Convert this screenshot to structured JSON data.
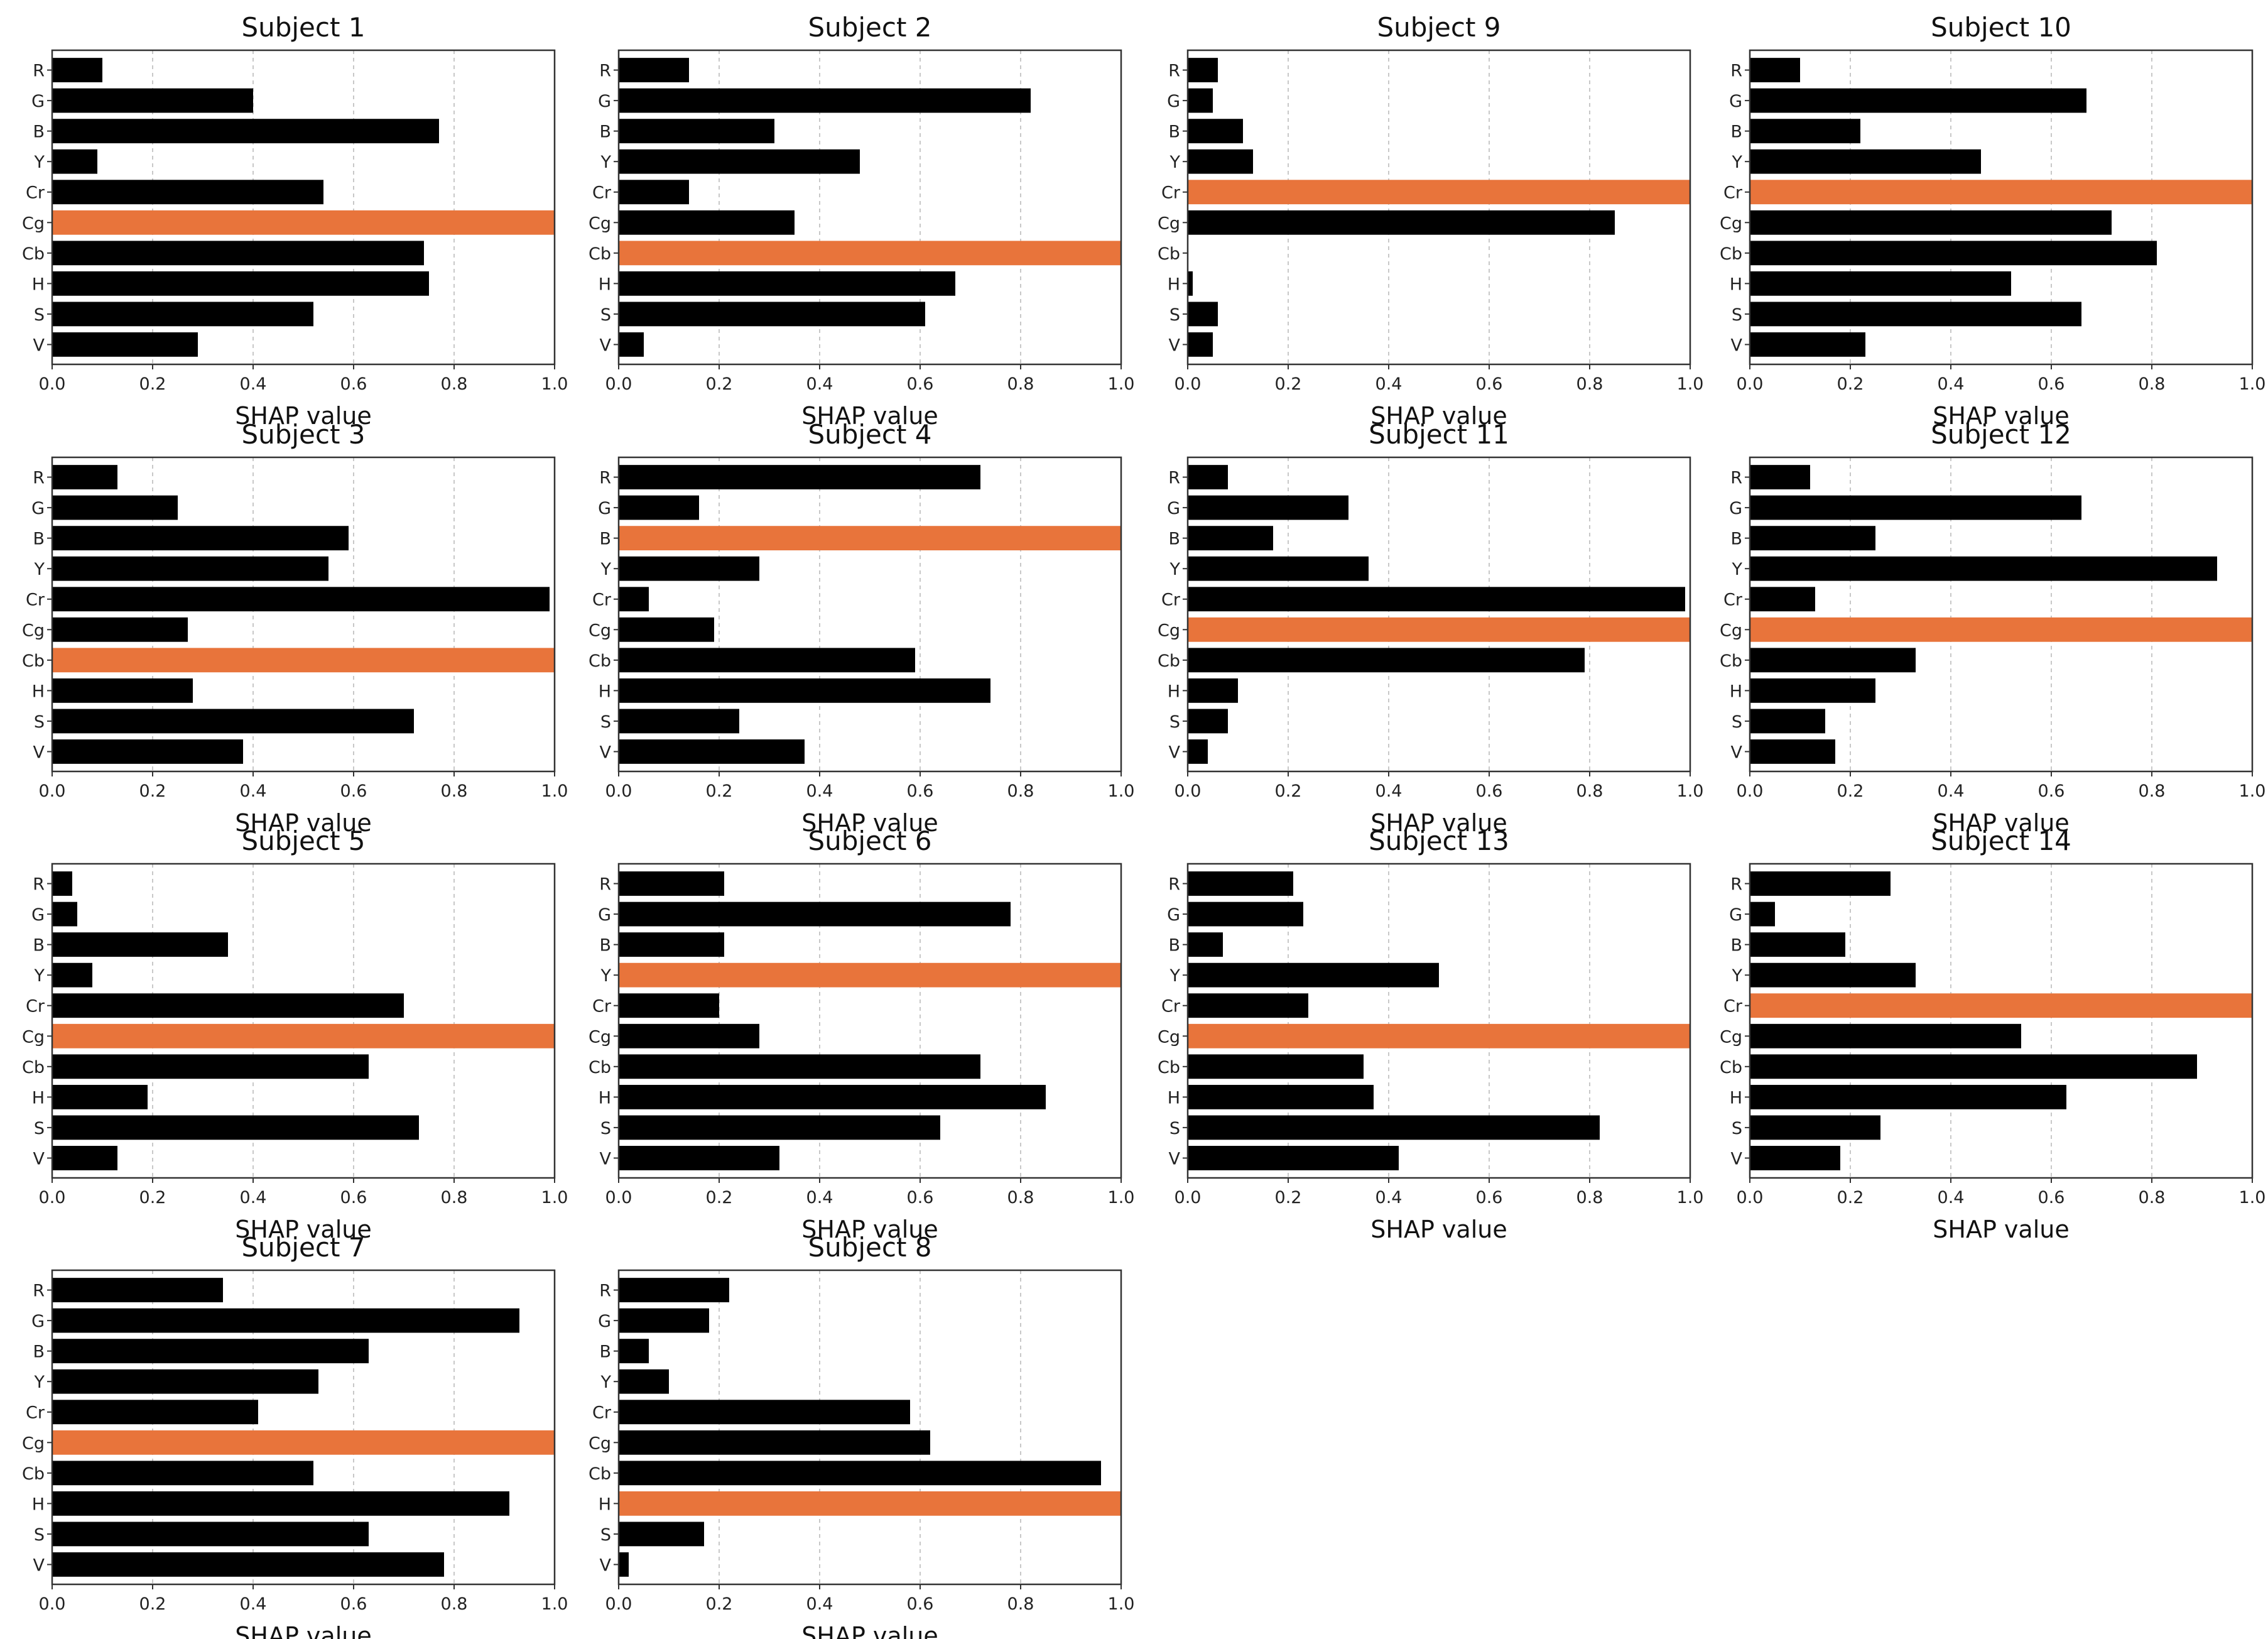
{
  "figure": {
    "bar_color": "#000000",
    "highlight_color": "#E8743B",
    "axis_color": "#333333",
    "grid": true,
    "grid_style": "dashed vertical"
  },
  "chart_data": [
    {
      "type": "bar",
      "orientation": "horizontal",
      "title": "Subject 1",
      "xlabel": "SHAP value",
      "xlim": [
        0,
        1
      ],
      "xticks": [
        "0.0",
        "0.2",
        "0.4",
        "0.6",
        "0.8",
        "1.0"
      ],
      "categories": [
        "R",
        "G",
        "B",
        "Y",
        "Cr",
        "Cg",
        "Cb",
        "H",
        "S",
        "V"
      ],
      "values": [
        0.1,
        0.4,
        0.77,
        0.09,
        0.54,
        1.0,
        0.74,
        0.75,
        0.52,
        0.29
      ],
      "highlight": "Cg"
    },
    {
      "type": "bar",
      "orientation": "horizontal",
      "title": "Subject 2",
      "xlabel": "SHAP value",
      "xlim": [
        0,
        1
      ],
      "xticks": [
        "0.0",
        "0.2",
        "0.4",
        "0.6",
        "0.8",
        "1.0"
      ],
      "categories": [
        "R",
        "G",
        "B",
        "Y",
        "Cr",
        "Cg",
        "Cb",
        "H",
        "S",
        "V"
      ],
      "values": [
        0.14,
        0.82,
        0.31,
        0.48,
        0.14,
        0.35,
        1.0,
        0.67,
        0.61,
        0.05
      ],
      "highlight": "Cb"
    },
    {
      "type": "bar",
      "orientation": "horizontal",
      "title": "Subject 9",
      "xlabel": "SHAP value",
      "xlim": [
        0,
        1
      ],
      "xticks": [
        "0.0",
        "0.2",
        "0.4",
        "0.6",
        "0.8",
        "1.0"
      ],
      "categories": [
        "R",
        "G",
        "B",
        "Y",
        "Cr",
        "Cg",
        "Cb",
        "H",
        "S",
        "V"
      ],
      "values": [
        0.06,
        0.05,
        0.11,
        0.13,
        1.0,
        0.85,
        0.0,
        0.01,
        0.06,
        0.05
      ],
      "highlight": "Cr"
    },
    {
      "type": "bar",
      "orientation": "horizontal",
      "title": "Subject 10",
      "xlabel": "SHAP value",
      "xlim": [
        0,
        1
      ],
      "xticks": [
        "0.0",
        "0.2",
        "0.4",
        "0.6",
        "0.8",
        "1.0"
      ],
      "categories": [
        "R",
        "G",
        "B",
        "Y",
        "Cr",
        "Cg",
        "Cb",
        "H",
        "S",
        "V"
      ],
      "values": [
        0.1,
        0.67,
        0.22,
        0.46,
        1.0,
        0.72,
        0.81,
        0.52,
        0.66,
        0.23
      ],
      "highlight": "Cr"
    },
    {
      "type": "bar",
      "orientation": "horizontal",
      "title": "Subject 3",
      "xlabel": "SHAP value",
      "xlim": [
        0,
        1
      ],
      "xticks": [
        "0.0",
        "0.2",
        "0.4",
        "0.6",
        "0.8",
        "1.0"
      ],
      "categories": [
        "R",
        "G",
        "B",
        "Y",
        "Cr",
        "Cg",
        "Cb",
        "H",
        "S",
        "V"
      ],
      "values": [
        0.13,
        0.25,
        0.59,
        0.55,
        0.99,
        0.27,
        1.0,
        0.28,
        0.72,
        0.38
      ],
      "highlight": "Cb"
    },
    {
      "type": "bar",
      "orientation": "horizontal",
      "title": "Subject 4",
      "xlabel": "SHAP value",
      "xlim": [
        0,
        1
      ],
      "xticks": [
        "0.0",
        "0.2",
        "0.4",
        "0.6",
        "0.8",
        "1.0"
      ],
      "categories": [
        "R",
        "G",
        "B",
        "Y",
        "Cr",
        "Cg",
        "Cb",
        "H",
        "S",
        "V"
      ],
      "values": [
        0.72,
        0.16,
        1.0,
        0.28,
        0.06,
        0.19,
        0.59,
        0.74,
        0.24,
        0.37
      ],
      "highlight": "B"
    },
    {
      "type": "bar",
      "orientation": "horizontal",
      "title": "Subject 11",
      "xlabel": "SHAP value",
      "xlim": [
        0,
        1
      ],
      "xticks": [
        "0.0",
        "0.2",
        "0.4",
        "0.6",
        "0.8",
        "1.0"
      ],
      "categories": [
        "R",
        "G",
        "B",
        "Y",
        "Cr",
        "Cg",
        "Cb",
        "H",
        "S",
        "V"
      ],
      "values": [
        0.08,
        0.32,
        0.17,
        0.36,
        0.99,
        1.0,
        0.79,
        0.1,
        0.08,
        0.04
      ],
      "highlight": "Cg"
    },
    {
      "type": "bar",
      "orientation": "horizontal",
      "title": "Subject 12",
      "xlabel": "SHAP value",
      "xlim": [
        0,
        1
      ],
      "xticks": [
        "0.0",
        "0.2",
        "0.4",
        "0.6",
        "0.8",
        "1.0"
      ],
      "categories": [
        "R",
        "G",
        "B",
        "Y",
        "Cr",
        "Cg",
        "Cb",
        "H",
        "S",
        "V"
      ],
      "values": [
        0.12,
        0.66,
        0.25,
        0.93,
        0.13,
        1.0,
        0.33,
        0.25,
        0.15,
        0.17
      ],
      "highlight": "Cg"
    },
    {
      "type": "bar",
      "orientation": "horizontal",
      "title": "Subject 5",
      "xlabel": "SHAP value",
      "xlim": [
        0,
        1
      ],
      "xticks": [
        "0.0",
        "0.2",
        "0.4",
        "0.6",
        "0.8",
        "1.0"
      ],
      "categories": [
        "R",
        "G",
        "B",
        "Y",
        "Cr",
        "Cg",
        "Cb",
        "H",
        "S",
        "V"
      ],
      "values": [
        0.04,
        0.05,
        0.35,
        0.08,
        0.7,
        1.0,
        0.63,
        0.19,
        0.73,
        0.13
      ],
      "highlight": "Cg"
    },
    {
      "type": "bar",
      "orientation": "horizontal",
      "title": "Subject 6",
      "xlabel": "SHAP value",
      "xlim": [
        0,
        1
      ],
      "xticks": [
        "0.0",
        "0.2",
        "0.4",
        "0.6",
        "0.8",
        "1.0"
      ],
      "categories": [
        "R",
        "G",
        "B",
        "Y",
        "Cr",
        "Cg",
        "Cb",
        "H",
        "S",
        "V"
      ],
      "values": [
        0.21,
        0.78,
        0.21,
        1.0,
        0.2,
        0.28,
        0.72,
        0.85,
        0.64,
        0.32
      ],
      "highlight": "Y"
    },
    {
      "type": "bar",
      "orientation": "horizontal",
      "title": "Subject 13",
      "xlabel": "SHAP value",
      "xlim": [
        0,
        1
      ],
      "xticks": [
        "0.0",
        "0.2",
        "0.4",
        "0.6",
        "0.8",
        "1.0"
      ],
      "categories": [
        "R",
        "G",
        "B",
        "Y",
        "Cr",
        "Cg",
        "Cb",
        "H",
        "S",
        "V"
      ],
      "values": [
        0.21,
        0.23,
        0.07,
        0.5,
        0.24,
        1.0,
        0.35,
        0.37,
        0.82,
        0.42
      ],
      "highlight": "Cg"
    },
    {
      "type": "bar",
      "orientation": "horizontal",
      "title": "Subject 14",
      "xlabel": "SHAP value",
      "xlim": [
        0,
        1
      ],
      "xticks": [
        "0.0",
        "0.2",
        "0.4",
        "0.6",
        "0.8",
        "1.0"
      ],
      "categories": [
        "R",
        "G",
        "B",
        "Y",
        "Cr",
        "Cg",
        "Cb",
        "H",
        "S",
        "V"
      ],
      "values": [
        0.28,
        0.05,
        0.19,
        0.33,
        1.0,
        0.54,
        0.89,
        0.63,
        0.26,
        0.18
      ],
      "highlight": "Cr"
    },
    {
      "type": "bar",
      "orientation": "horizontal",
      "title": "Subject 7",
      "xlabel": "SHAP value",
      "xlim": [
        0,
        1
      ],
      "xticks": [
        "0.0",
        "0.2",
        "0.4",
        "0.6",
        "0.8",
        "1.0"
      ],
      "categories": [
        "R",
        "G",
        "B",
        "Y",
        "Cr",
        "Cg",
        "Cb",
        "H",
        "S",
        "V"
      ],
      "values": [
        0.34,
        0.93,
        0.63,
        0.53,
        0.41,
        1.0,
        0.52,
        0.91,
        0.63,
        0.78
      ],
      "highlight": "Cg"
    },
    {
      "type": "bar",
      "orientation": "horizontal",
      "title": "Subject 8",
      "xlabel": "SHAP value",
      "xlim": [
        0,
        1
      ],
      "xticks": [
        "0.0",
        "0.2",
        "0.4",
        "0.6",
        "0.8",
        "1.0"
      ],
      "categories": [
        "R",
        "G",
        "B",
        "Y",
        "Cr",
        "Cg",
        "Cb",
        "H",
        "S",
        "V"
      ],
      "values": [
        0.22,
        0.18,
        0.06,
        0.1,
        0.58,
        0.62,
        0.96,
        1.0,
        0.17,
        0.02
      ],
      "highlight": "H"
    }
  ]
}
